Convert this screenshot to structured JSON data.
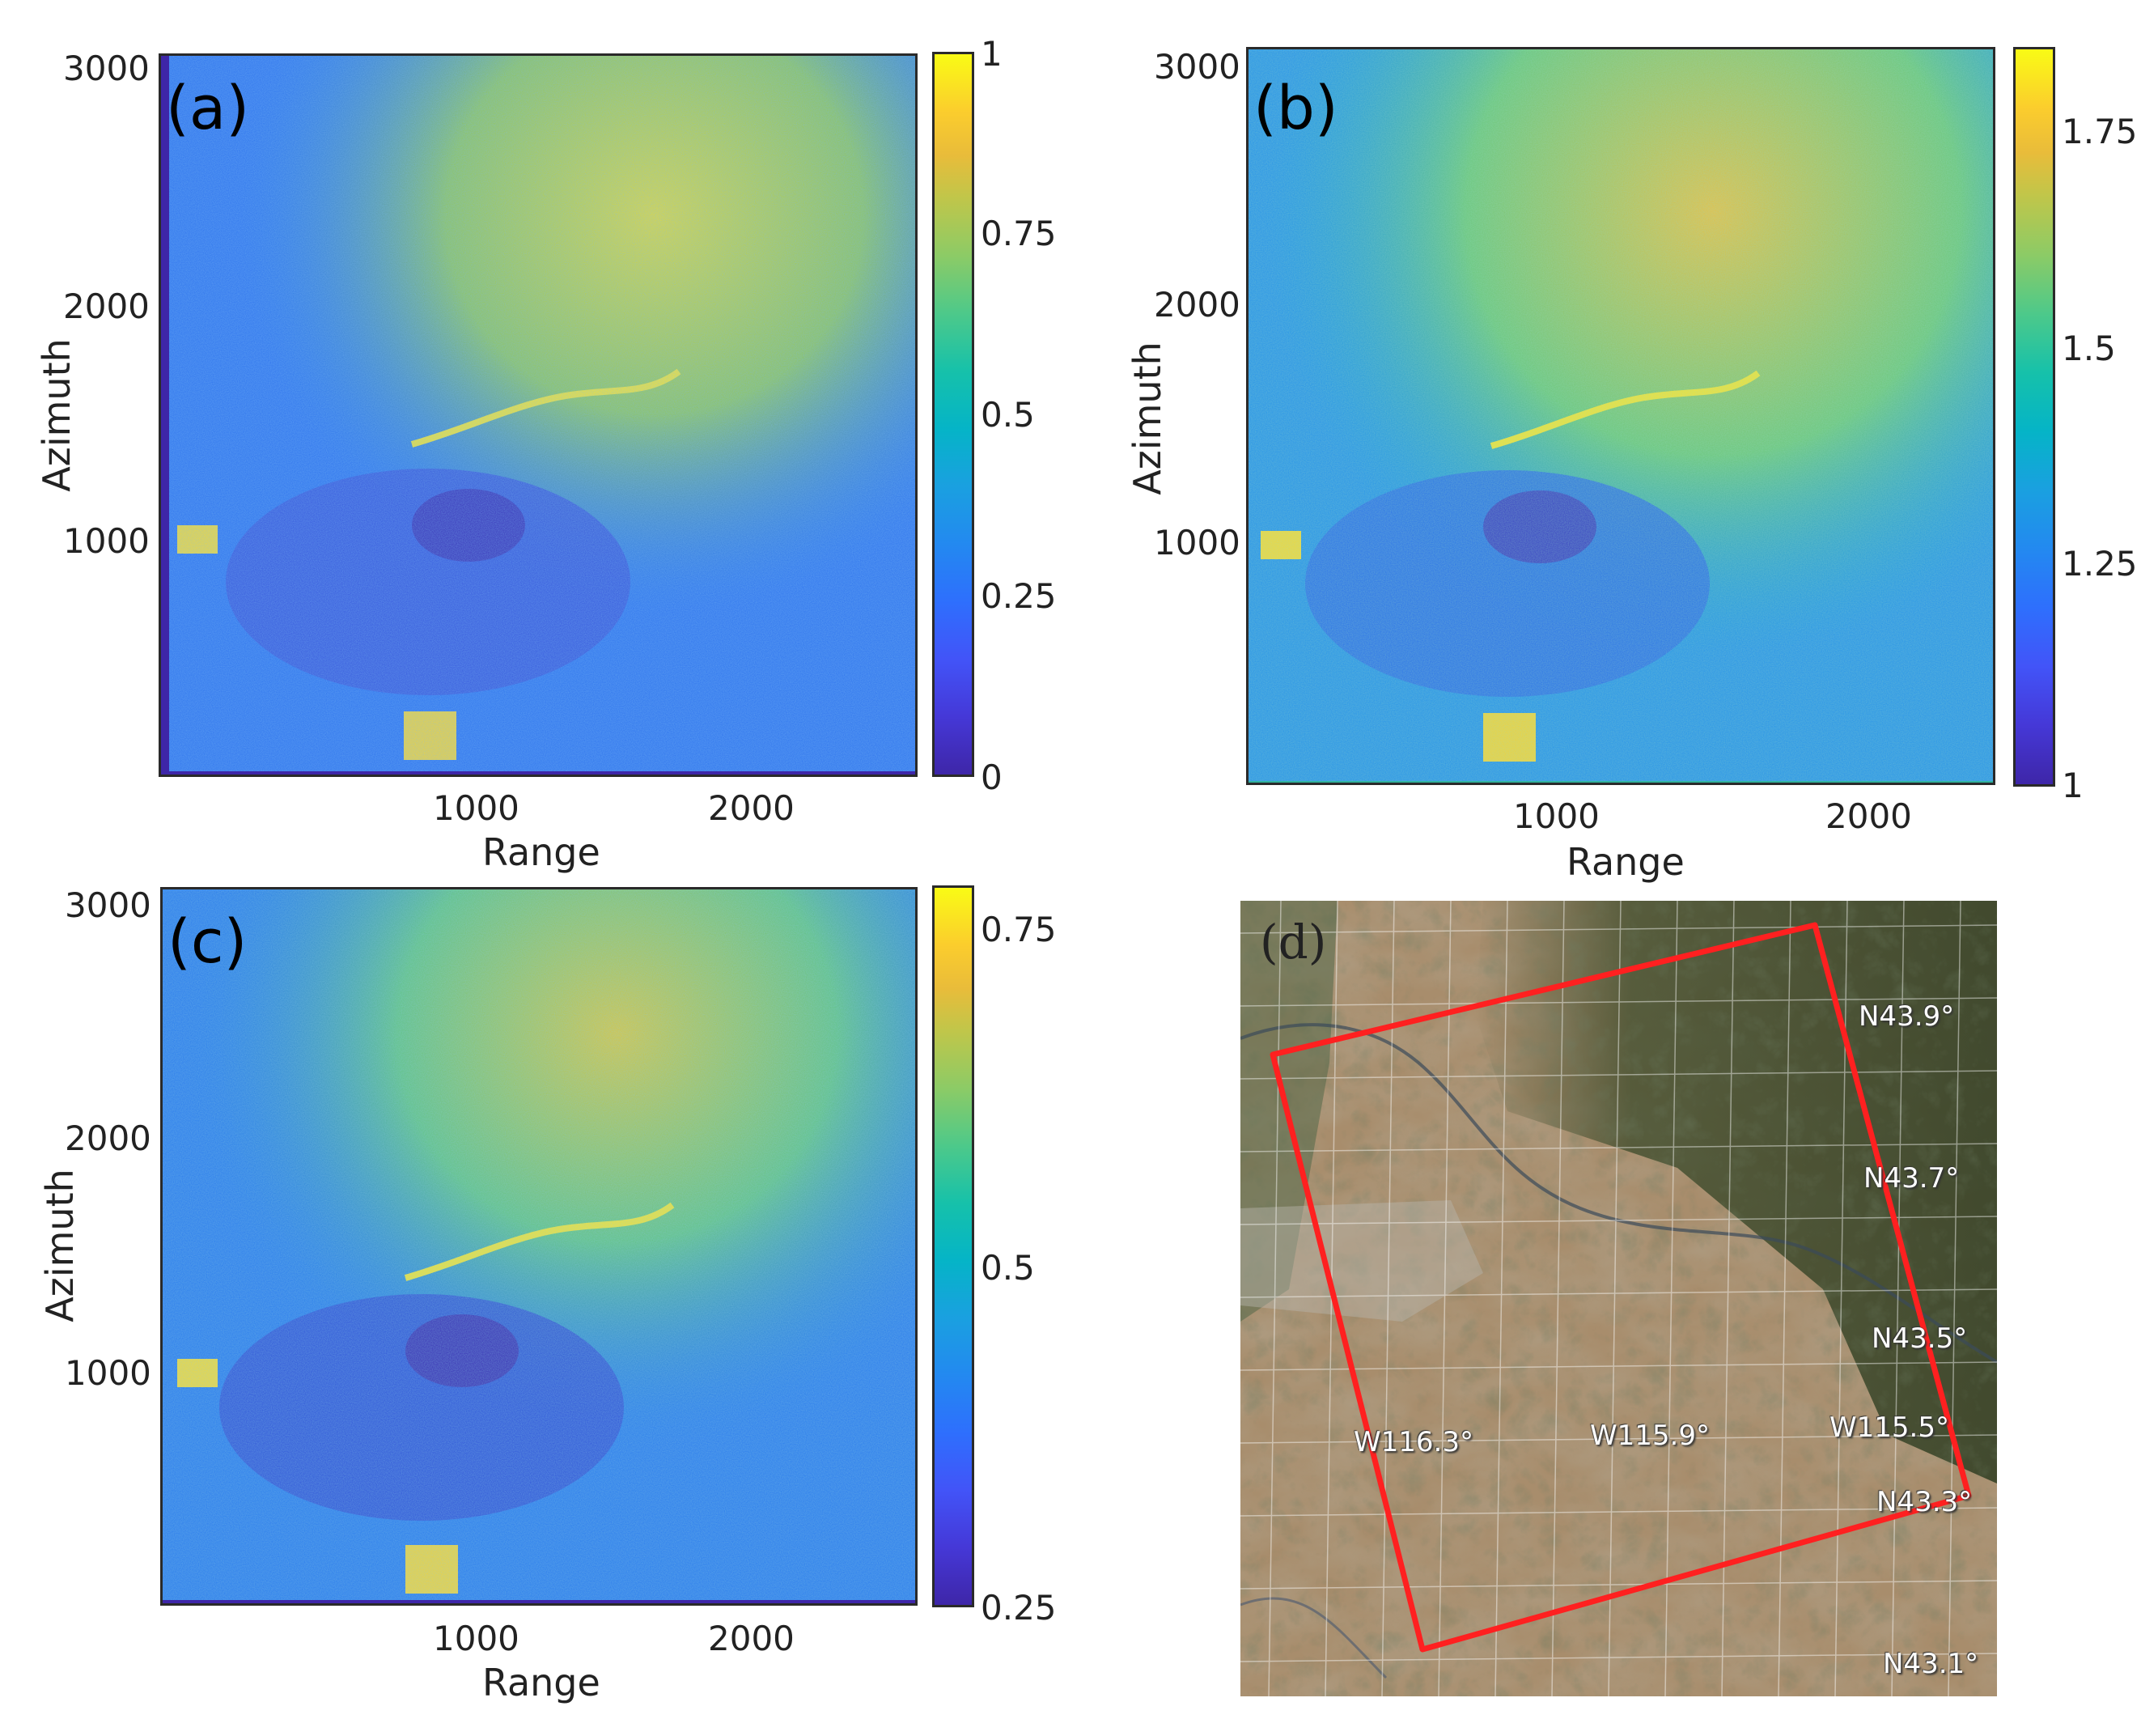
{
  "panels": {
    "a": {
      "label": "(a)",
      "ylabel": "Azimuth",
      "xlabel": "Range",
      "yticks": [
        "3000",
        "2000",
        "1000"
      ],
      "xticks": [
        "1000",
        "2000"
      ],
      "colorbar_ticks": [
        "1",
        "0.75",
        "0.5",
        "0.25",
        "0"
      ]
    },
    "b": {
      "label": "(b)",
      "ylabel": "Azimuth",
      "xlabel": "Range",
      "yticks": [
        "3000",
        "2000",
        "1000"
      ],
      "xticks": [
        "1000",
        "2000"
      ],
      "colorbar_ticks": [
        "1.75",
        "1.5",
        "1.25",
        "1"
      ]
    },
    "c": {
      "label": "(c)",
      "ylabel": "Azimuth",
      "xlabel": "Range",
      "yticks": [
        "3000",
        "2000",
        "1000"
      ],
      "xticks": [
        "1000",
        "2000"
      ],
      "colorbar_ticks": [
        "0.75",
        "0.5",
        "0.25"
      ]
    },
    "d": {
      "label": "(d)",
      "latitude_labels": [
        "N43.9°",
        "N43.7°",
        "N43.5°",
        "N43.3°",
        "N43.1°"
      ],
      "longitude_labels": [
        "W116.3°",
        "W115.9°",
        "W115.5°"
      ]
    }
  },
  "colors": {
    "outline": "#ff2020",
    "colormap_low": "#3e26a8",
    "colormap_high": "#f9fb15"
  }
}
